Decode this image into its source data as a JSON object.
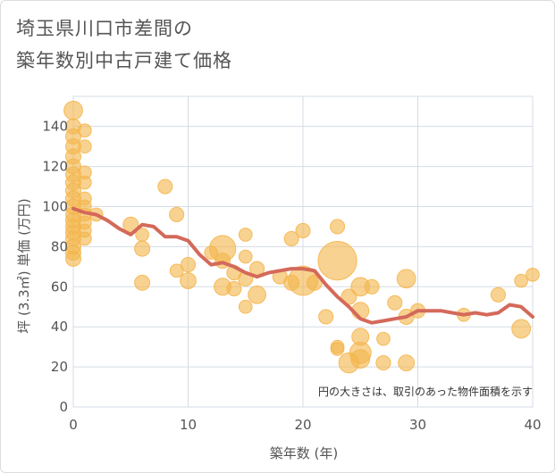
{
  "title_lines": [
    "埼玉県川口市差間の",
    "築年数別中古戸建て価格"
  ],
  "colors": {
    "bubble": "#f4b64e",
    "line": "#d4695a",
    "grid": "#d5dce4"
  },
  "chart_data": {
    "type": "scatter",
    "title": "埼玉県川口市差間の築年数別中古戸建て価格",
    "xlabel": "築年数 (年)",
    "ylabel": "坪 (3.3㎡) 単価 (万円)",
    "xlim": [
      0,
      40
    ],
    "ylim": [
      0,
      155
    ],
    "x_ticks": [
      0,
      10,
      20,
      30,
      40
    ],
    "y_ticks": [
      0,
      20,
      40,
      60,
      80,
      100,
      120,
      140
    ],
    "grid": true,
    "annotation": "円の大きさは、取引のあった物件面積を示す",
    "points": [
      {
        "x": 0,
        "y": 148,
        "s": 3
      },
      {
        "x": 0,
        "y": 140,
        "s": 2
      },
      {
        "x": 0,
        "y": 135,
        "s": 2
      },
      {
        "x": 0,
        "y": 130,
        "s": 2
      },
      {
        "x": 0,
        "y": 125,
        "s": 2
      },
      {
        "x": 0,
        "y": 120,
        "s": 2
      },
      {
        "x": 0,
        "y": 116,
        "s": 2
      },
      {
        "x": 0,
        "y": 112,
        "s": 2
      },
      {
        "x": 0,
        "y": 108,
        "s": 2
      },
      {
        "x": 0,
        "y": 104,
        "s": 2
      },
      {
        "x": 0,
        "y": 100,
        "s": 2
      },
      {
        "x": 0,
        "y": 96,
        "s": 2
      },
      {
        "x": 0,
        "y": 93,
        "s": 2
      },
      {
        "x": 0,
        "y": 90,
        "s": 2
      },
      {
        "x": 0,
        "y": 87,
        "s": 2
      },
      {
        "x": 0,
        "y": 84,
        "s": 2
      },
      {
        "x": 0,
        "y": 80,
        "s": 2
      },
      {
        "x": 0,
        "y": 77,
        "s": 2
      },
      {
        "x": 0,
        "y": 74,
        "s": 2
      },
      {
        "x": 1,
        "y": 138,
        "s": 1.5
      },
      {
        "x": 1,
        "y": 130,
        "s": 1.5
      },
      {
        "x": 1,
        "y": 117,
        "s": 1.5
      },
      {
        "x": 1,
        "y": 112,
        "s": 1.5
      },
      {
        "x": 1,
        "y": 104,
        "s": 1.5
      },
      {
        "x": 1,
        "y": 100,
        "s": 1.5
      },
      {
        "x": 1,
        "y": 96,
        "s": 1.5
      },
      {
        "x": 1,
        "y": 92,
        "s": 1.5
      },
      {
        "x": 1,
        "y": 88,
        "s": 1.5
      },
      {
        "x": 1,
        "y": 84,
        "s": 1.5
      },
      {
        "x": 2,
        "y": 96,
        "s": 1.5
      },
      {
        "x": 5,
        "y": 91,
        "s": 2
      },
      {
        "x": 6,
        "y": 86,
        "s": 1.5
      },
      {
        "x": 6,
        "y": 79,
        "s": 2
      },
      {
        "x": 6,
        "y": 62,
        "s": 2
      },
      {
        "x": 8,
        "y": 110,
        "s": 1.8
      },
      {
        "x": 9,
        "y": 96,
        "s": 1.8
      },
      {
        "x": 9,
        "y": 68,
        "s": 1.5
      },
      {
        "x": 10,
        "y": 71,
        "s": 1.8
      },
      {
        "x": 10,
        "y": 63,
        "s": 2.2
      },
      {
        "x": 12,
        "y": 77,
        "s": 1.5
      },
      {
        "x": 13,
        "y": 79,
        "s": 6
      },
      {
        "x": 13,
        "y": 73,
        "s": 2
      },
      {
        "x": 13,
        "y": 60,
        "s": 2.5
      },
      {
        "x": 14,
        "y": 67,
        "s": 1.8
      },
      {
        "x": 14,
        "y": 59,
        "s": 1.8
      },
      {
        "x": 15,
        "y": 86,
        "s": 1.5
      },
      {
        "x": 15,
        "y": 75,
        "s": 1.5
      },
      {
        "x": 15,
        "y": 64,
        "s": 1.8
      },
      {
        "x": 15,
        "y": 50,
        "s": 1.5
      },
      {
        "x": 16,
        "y": 69,
        "s": 1.8
      },
      {
        "x": 16,
        "y": 56,
        "s": 2.7
      },
      {
        "x": 18,
        "y": 65,
        "s": 1.8
      },
      {
        "x": 19,
        "y": 84,
        "s": 1.8
      },
      {
        "x": 19,
        "y": 62,
        "s": 2
      },
      {
        "x": 20,
        "y": 88,
        "s": 1.8
      },
      {
        "x": 20,
        "y": 63,
        "s": 7.5
      },
      {
        "x": 21,
        "y": 62,
        "s": 2
      },
      {
        "x": 22,
        "y": 45,
        "s": 1.8
      },
      {
        "x": 23,
        "y": 73,
        "s": 13
      },
      {
        "x": 23,
        "y": 90,
        "s": 1.8
      },
      {
        "x": 23,
        "y": 30,
        "s": 1.5
      },
      {
        "x": 23,
        "y": 29,
        "s": 1.5
      },
      {
        "x": 24,
        "y": 55,
        "s": 2
      },
      {
        "x": 24,
        "y": 22,
        "s": 3.5
      },
      {
        "x": 25,
        "y": 60,
        "s": 3
      },
      {
        "x": 25,
        "y": 48,
        "s": 2.5
      },
      {
        "x": 25,
        "y": 35,
        "s": 2.5
      },
      {
        "x": 25,
        "y": 27,
        "s": 4
      },
      {
        "x": 25,
        "y": 24,
        "s": 3
      },
      {
        "x": 26,
        "y": 60,
        "s": 1.8
      },
      {
        "x": 27,
        "y": 34,
        "s": 1.5
      },
      {
        "x": 27,
        "y": 22,
        "s": 1.8
      },
      {
        "x": 28,
        "y": 52,
        "s": 1.8
      },
      {
        "x": 29,
        "y": 64,
        "s": 3
      },
      {
        "x": 29,
        "y": 45,
        "s": 2
      },
      {
        "x": 29,
        "y": 22,
        "s": 2.2
      },
      {
        "x": 30,
        "y": 48,
        "s": 1.8
      },
      {
        "x": 34,
        "y": 46,
        "s": 1.5
      },
      {
        "x": 37,
        "y": 56,
        "s": 1.8
      },
      {
        "x": 39,
        "y": 63,
        "s": 1.5
      },
      {
        "x": 39,
        "y": 39,
        "s": 3
      },
      {
        "x": 40,
        "y": 66,
        "s": 1.5
      }
    ],
    "line": {
      "x": [
        0,
        1,
        2,
        3,
        4,
        5,
        6,
        7,
        8,
        9,
        10,
        11,
        12,
        13,
        14,
        15,
        16,
        17,
        18,
        19,
        20,
        21,
        22,
        23,
        24,
        25,
        26,
        27,
        28,
        29,
        30,
        31,
        32,
        33,
        34,
        35,
        36,
        37,
        38,
        39,
        40
      ],
      "y": [
        99,
        97,
        96,
        93,
        89,
        86,
        91,
        90,
        85,
        85,
        83,
        76,
        71,
        72,
        70,
        67,
        65,
        67,
        68,
        69,
        69,
        68,
        61,
        55,
        50,
        44,
        42,
        43,
        44,
        45,
        48,
        48,
        48,
        47,
        46,
        47,
        46,
        47,
        51,
        50,
        45
      ]
    }
  }
}
